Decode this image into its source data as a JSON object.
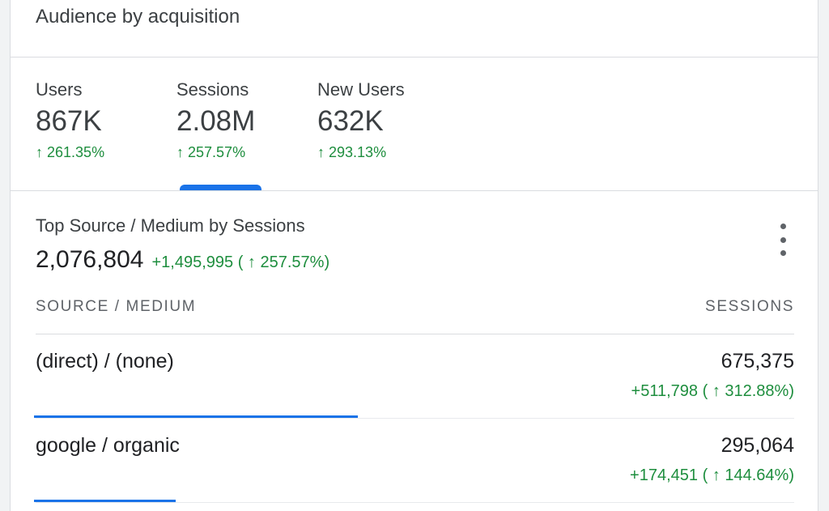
{
  "card": {
    "title": "Audience by acquisition"
  },
  "metrics": [
    {
      "label": "Users",
      "value": "867K",
      "delta": "261.35%"
    },
    {
      "label": "Sessions",
      "value": "2.08M",
      "delta": "257.57%"
    },
    {
      "label": "New Users",
      "value": "632K",
      "delta": "293.13%"
    }
  ],
  "selected_metric": "Sessions",
  "section": {
    "title": "Top Source / Medium by Sessions",
    "total": "2,076,804",
    "total_change": "+1,495,995",
    "total_pct": "257.57%)",
    "total_open": "("
  },
  "table": {
    "col_source": "SOURCE / MEDIUM",
    "col_sessions": "SESSIONS",
    "rows": [
      {
        "source": "(direct) / (none)",
        "sessions": "675,375",
        "change": "+511,798",
        "open": "(",
        "pct": "312.88%)",
        "bar_fraction": 1.0
      },
      {
        "source": "google / organic",
        "sessions": "295,064",
        "change": "+174,451",
        "open": "(",
        "pct": "144.64%)",
        "bar_fraction": 0.437
      }
    ]
  },
  "icons": {
    "arrow": "arrow-up-icon",
    "more": "more-vert-icon"
  },
  "colors": {
    "positive": "#1e8e3e",
    "accent": "#1a73e8"
  }
}
